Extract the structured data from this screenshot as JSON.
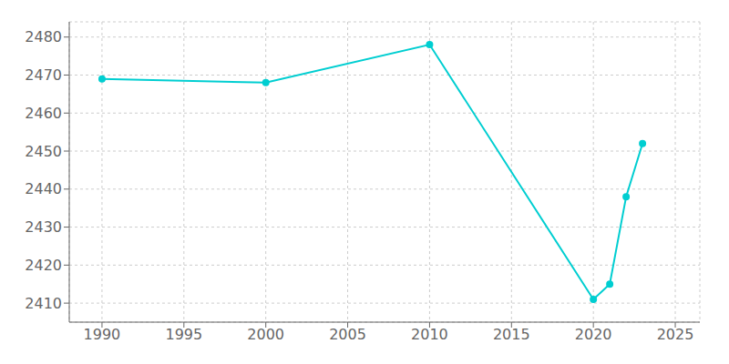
{
  "chart_data": {
    "type": "line",
    "x": [
      1990,
      2000,
      2010,
      2020,
      2021,
      2022,
      2023
    ],
    "values": [
      2469,
      2468,
      2478,
      2411,
      2415,
      2438,
      2452
    ],
    "color": "#00CED1",
    "marker": "o",
    "xlim": [
      1988,
      2026.5
    ],
    "ylim": [
      2405,
      2484
    ],
    "xticks": [
      1990,
      1995,
      2000,
      2005,
      2010,
      2015,
      2020,
      2025
    ],
    "yticks": [
      2410,
      2420,
      2430,
      2440,
      2450,
      2460,
      2470,
      2480
    ],
    "grid": true
  }
}
